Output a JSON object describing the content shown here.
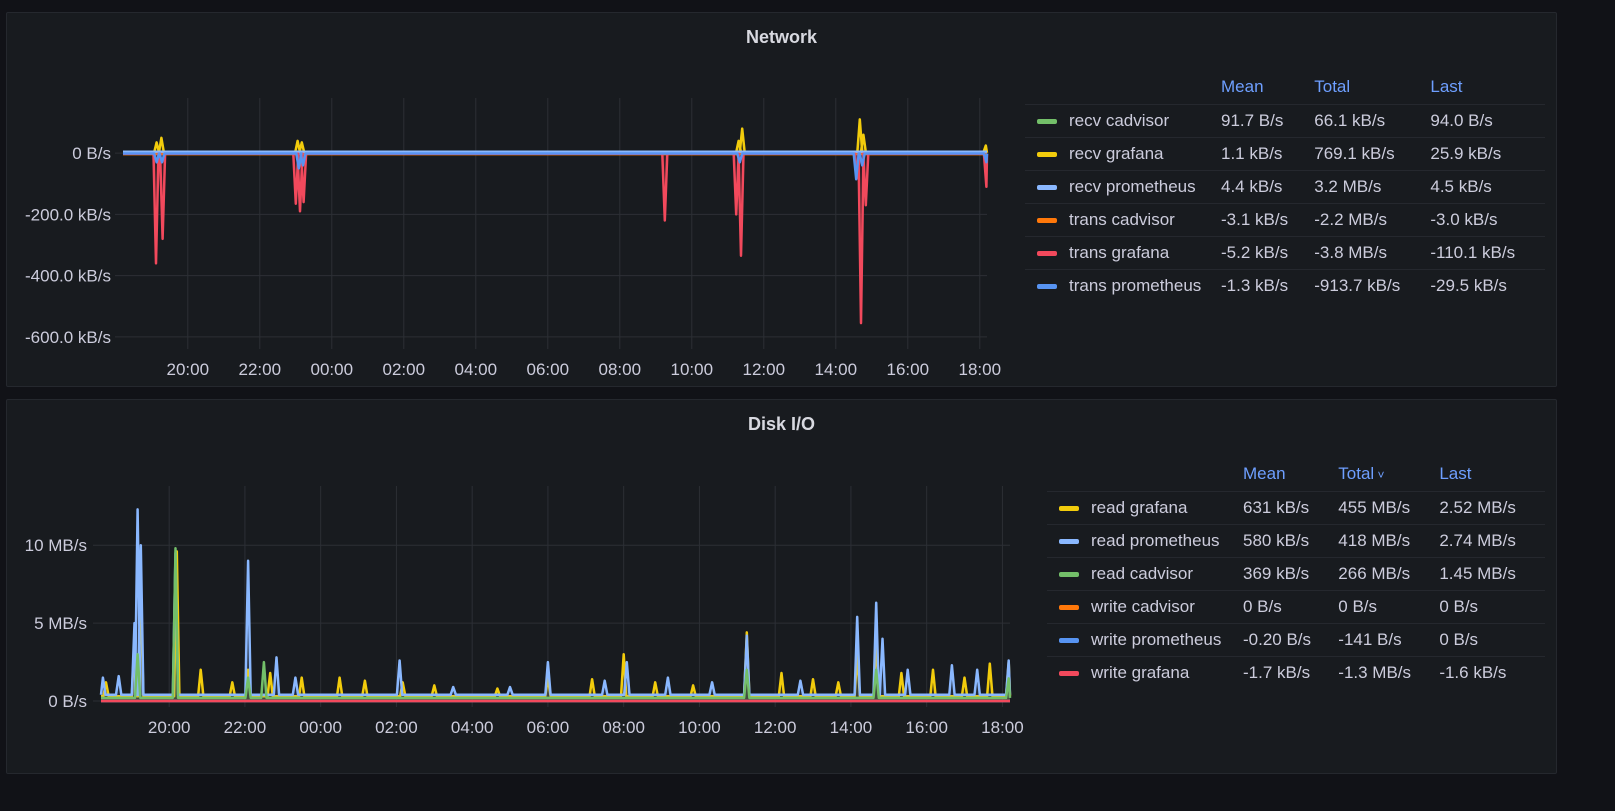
{
  "chart_data": [
    {
      "type": "line",
      "title": "Network",
      "unit": "kB/s",
      "ylim": [
        -620,
        180
      ],
      "yticks": [
        {
          "v": 0,
          "label": "0 B/s"
        },
        {
          "v": -200,
          "label": "-200.0 kB/s"
        },
        {
          "v": -400,
          "label": "-400.0 kB/s"
        },
        {
          "v": -600,
          "label": "-600.0 kB/s"
        }
      ],
      "xrange": [
        "18:12",
        "18:12"
      ],
      "xticks": [
        "20:00",
        "22:00",
        "00:00",
        "02:00",
        "04:00",
        "06:00",
        "08:00",
        "10:00",
        "12:00",
        "14:00",
        "16:00",
        "18:00"
      ],
      "grid": true,
      "legend": "right",
      "columns": [
        "Mean",
        "Total",
        "Last"
      ],
      "series": [
        {
          "name": "recv cadvisor",
          "color": "#73bf69",
          "stats": [
            "91.7 B/s",
            "66.1 kB/s",
            "94.0 B/s"
          ],
          "baseline": 0.1,
          "spikes": []
        },
        {
          "name": "recv grafana",
          "color": "#f2cc0c",
          "stats": [
            "1.1 kB/s",
            "769.1 kB/s",
            "25.9 kB/s"
          ],
          "baseline": 1,
          "spikes": [
            [
              "19:08",
              35
            ],
            [
              "19:16",
              50
            ],
            [
              "23:03",
              40
            ],
            [
              "23:10",
              35
            ],
            [
              "11:18",
              40
            ],
            [
              "11:24",
              80
            ],
            [
              "14:40",
              110
            ],
            [
              "14:46",
              60
            ],
            [
              "18:10",
              25
            ]
          ]
        },
        {
          "name": "recv prometheus",
          "color": "#8ab8ff",
          "stats": [
            "4.4 kB/s",
            "3.2 MB/s",
            "4.5 kB/s"
          ],
          "baseline": 4.4,
          "spikes": []
        },
        {
          "name": "trans cadvisor",
          "color": "#ff780a",
          "stats": [
            "-3.1 kB/s",
            "-2.2 MB/s",
            "-3.0 kB/s"
          ],
          "baseline": -3.1,
          "spikes": []
        },
        {
          "name": "trans grafana",
          "color": "#f2495c",
          "stats": [
            "-5.2 kB/s",
            "-3.8 MB/s",
            "-110.1 kB/s"
          ],
          "baseline": -2,
          "spikes": [
            [
              "19:07",
              -360
            ],
            [
              "19:18",
              -280
            ],
            [
              "23:00",
              -165
            ],
            [
              "23:07",
              -190
            ],
            [
              "23:13",
              -160
            ],
            [
              "09:15",
              -220
            ],
            [
              "11:14",
              -200
            ],
            [
              "11:22",
              -335
            ],
            [
              "14:36",
              -80
            ],
            [
              "14:42",
              -555
            ],
            [
              "14:50",
              -170
            ],
            [
              "18:11",
              -110
            ]
          ]
        },
        {
          "name": "trans prometheus",
          "color": "#5794f2",
          "stats": [
            "-1.3 kB/s",
            "-913.7 kB/s",
            "-29.5 kB/s"
          ],
          "baseline": -1.3,
          "spikes": [
            [
              "19:08",
              -30
            ],
            [
              "19:17",
              -30
            ],
            [
              "23:05",
              -50
            ],
            [
              "23:12",
              -40
            ],
            [
              "11:20",
              -30
            ],
            [
              "14:34",
              -85
            ],
            [
              "14:44",
              -40
            ],
            [
              "18:11",
              -29.5
            ]
          ]
        }
      ]
    },
    {
      "type": "line",
      "title": "Disk I/O",
      "unit": "MB/s",
      "ylim": [
        0,
        13.8
      ],
      "yticks": [
        {
          "v": 0,
          "label": "0 B/s"
        },
        {
          "v": 5,
          "label": "5 MB/s"
        },
        {
          "v": 10,
          "label": "10 MB/s"
        }
      ],
      "xrange": [
        "18:12",
        "18:12"
      ],
      "xticks": [
        "20:00",
        "22:00",
        "00:00",
        "02:00",
        "04:00",
        "06:00",
        "08:00",
        "10:00",
        "12:00",
        "14:00",
        "16:00",
        "18:00"
      ],
      "grid": true,
      "legend": "right",
      "columns": [
        "Mean",
        "Total",
        "Last"
      ],
      "sort_column": "Total",
      "series": [
        {
          "name": "read grafana",
          "color": "#f2cc0c",
          "stats": [
            "631 kB/s",
            "455 MB/s",
            "2.52 MB/s"
          ],
          "baseline": 0.3,
          "spikes": [
            [
              "18:20",
              1.2
            ],
            [
              "19:05",
              4
            ],
            [
              "19:15",
              6.7
            ],
            [
              "20:12",
              9.6
            ],
            [
              "20:50",
              2
            ],
            [
              "21:40",
              1.2
            ],
            [
              "22:05",
              2
            ],
            [
              "22:40",
              1.8
            ],
            [
              "23:30",
              1.5
            ],
            [
              "00:30",
              1.5
            ],
            [
              "01:10",
              1.3
            ],
            [
              "02:10",
              1.2
            ],
            [
              "03:00",
              1
            ],
            [
              "04:40",
              0.8
            ],
            [
              "06:00",
              1.5
            ],
            [
              "07:10",
              1.4
            ],
            [
              "08:00",
              3
            ],
            [
              "08:50",
              1.2
            ],
            [
              "09:50",
              1
            ],
            [
              "11:15",
              4.4
            ],
            [
              "12:10",
              1.8
            ],
            [
              "13:00",
              1.4
            ],
            [
              "13:40",
              1.2
            ],
            [
              "14:10",
              3
            ],
            [
              "14:40",
              4
            ],
            [
              "15:20",
              1.8
            ],
            [
              "16:10",
              2
            ],
            [
              "17:00",
              1.5
            ],
            [
              "17:40",
              2.4
            ],
            [
              "18:10",
              2.5
            ]
          ]
        },
        {
          "name": "read prometheus",
          "color": "#8ab8ff",
          "stats": [
            "580 kB/s",
            "418 MB/s",
            "2.74 MB/s"
          ],
          "baseline": 0.4,
          "spikes": [
            [
              "18:15",
              1.5
            ],
            [
              "18:40",
              1.6
            ],
            [
              "19:05",
              5
            ],
            [
              "19:10",
              12.3
            ],
            [
              "19:15",
              10
            ],
            [
              "20:10",
              9.5
            ],
            [
              "22:05",
              9
            ],
            [
              "22:50",
              2.8
            ],
            [
              "23:20",
              1.5
            ],
            [
              "02:05",
              2.6
            ],
            [
              "03:30",
              0.9
            ],
            [
              "05:00",
              0.9
            ],
            [
              "06:00",
              2.5
            ],
            [
              "07:30",
              1.3
            ],
            [
              "08:05",
              2.5
            ],
            [
              "09:10",
              1.5
            ],
            [
              "10:20",
              1.2
            ],
            [
              "11:15",
              4.2
            ],
            [
              "12:40",
              1.3
            ],
            [
              "14:10",
              5.4
            ],
            [
              "14:40",
              6.3
            ],
            [
              "14:50",
              4
            ],
            [
              "15:30",
              2
            ],
            [
              "16:40",
              2.3
            ],
            [
              "17:20",
              2
            ],
            [
              "18:10",
              2.6
            ]
          ]
        },
        {
          "name": "read cadvisor",
          "color": "#73bf69",
          "stats": [
            "369 kB/s",
            "266 MB/s",
            "1.45 MB/s"
          ],
          "baseline": 0.2,
          "spikes": [
            [
              "19:10",
              3
            ],
            [
              "20:10",
              9.8
            ],
            [
              "22:05",
              1.5
            ],
            [
              "22:30",
              2.5
            ],
            [
              "11:15",
              2
            ],
            [
              "14:40",
              2
            ],
            [
              "18:10",
              1.45
            ]
          ]
        },
        {
          "name": "write cadvisor",
          "color": "#ff780a",
          "stats": [
            "0 B/s",
            "0 B/s",
            "0 B/s"
          ],
          "baseline": 0,
          "spikes": []
        },
        {
          "name": "write prometheus",
          "color": "#5794f2",
          "stats": [
            "-0.20 B/s",
            "-141 B/s",
            "0 B/s"
          ],
          "baseline": 0,
          "spikes": []
        },
        {
          "name": "write grafana",
          "color": "#f2495c",
          "stats": [
            "-1.7 kB/s",
            "-1.3 MB/s",
            "-1.6 kB/s"
          ],
          "baseline": 0,
          "spikes": []
        }
      ]
    }
  ]
}
